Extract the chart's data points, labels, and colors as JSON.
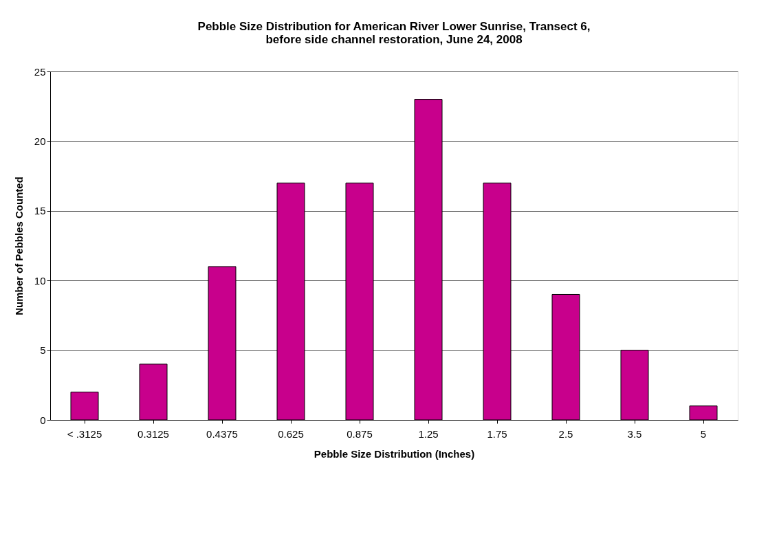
{
  "chart_data": {
    "type": "bar",
    "title": [
      "Pebble Size Distribution for American River Lower Sunrise, Transect 6,",
      "before side channel restoration, June 24, 2008"
    ],
    "xlabel": "Pebble Size Distribution (Inches)",
    "ylabel": "Number of Pebbles Counted",
    "categories": [
      "< .3125",
      "0.3125",
      "0.4375",
      "0.625",
      "0.875",
      "1.25",
      "1.75",
      "2.5",
      "3.5",
      "5"
    ],
    "series": [
      {
        "color": "#c8008c",
        "values": [
          2,
          4,
          11,
          17,
          17,
          23,
          17,
          9,
          5,
          1
        ]
      }
    ],
    "ylim": [
      0,
      25
    ],
    "yticks": [
      0,
      5,
      10,
      15,
      20,
      25
    ],
    "grid": "y",
    "legend": false
  }
}
